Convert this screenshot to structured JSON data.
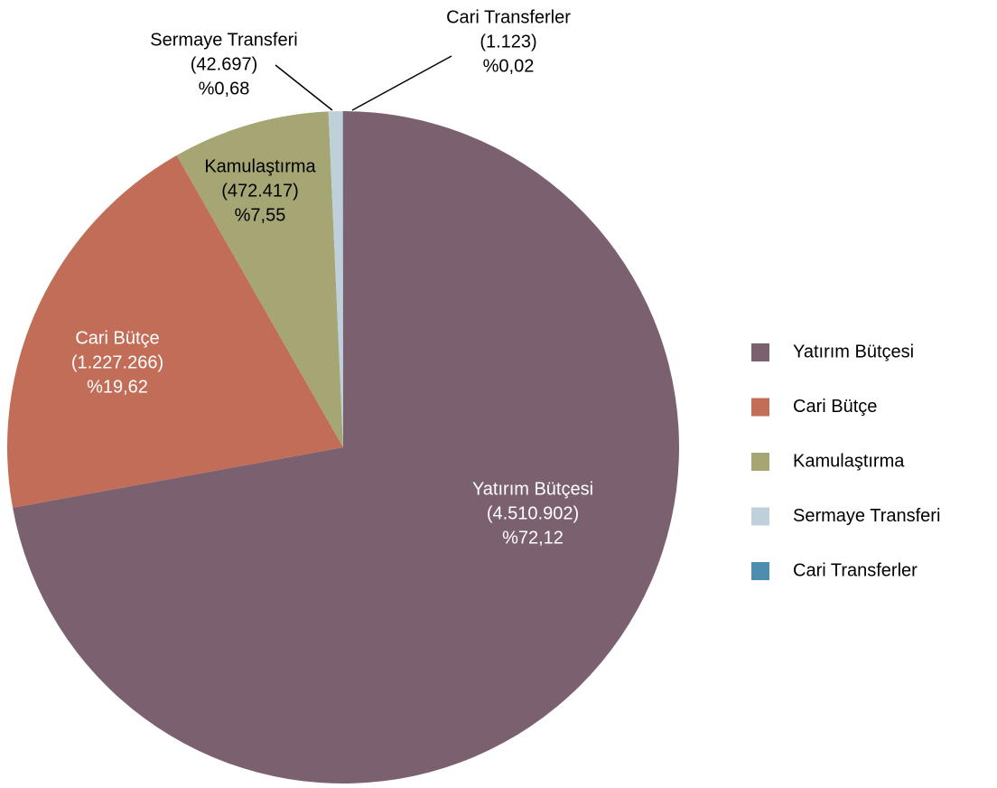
{
  "chart_data": {
    "type": "pie",
    "categories": [
      "Yatırım Bütçesi",
      "Cari Bütçe",
      "Kamulaştırma",
      "Sermaye Transferi",
      "Cari Transferler"
    ],
    "values": [
      4510902,
      1227266,
      472417,
      42697,
      1123
    ],
    "value_labels": [
      "(4.510.902)",
      "(1.227.266)",
      "(472.417)",
      "(42.697)",
      "(1.123)"
    ],
    "percentages": [
      72.12,
      19.62,
      7.55,
      0.68,
      0.02
    ],
    "percent_labels": [
      "%72,12",
      "%19,62",
      "%7,55",
      "%0,68",
      "%0,02"
    ],
    "colors": [
      "#7b6070",
      "#c26d58",
      "#a5a673",
      "#bfd0db",
      "#4e8db0"
    ],
    "legend": "right"
  }
}
